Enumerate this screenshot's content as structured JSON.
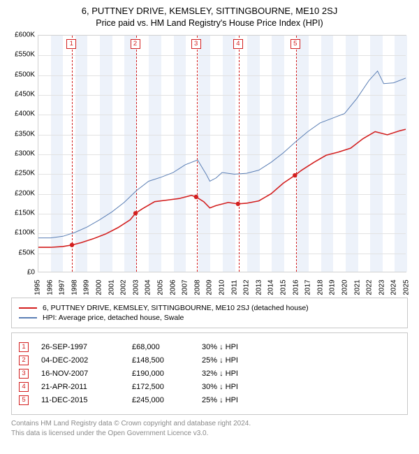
{
  "title": "6, PUTTNEY DRIVE, KEMSLEY, SITTINGBOURNE, ME10 2SJ",
  "subtitle": "Price paid vs. HM Land Registry's House Price Index (HPI)",
  "chart": {
    "type": "line",
    "background_color": "#ffffff",
    "grid_color": "#e2e2e2",
    "band_color": "#edf2fa",
    "x_years": [
      1995,
      1996,
      1997,
      1998,
      1999,
      2000,
      2001,
      2002,
      2003,
      2004,
      2005,
      2006,
      2007,
      2008,
      2009,
      2010,
      2011,
      2012,
      2013,
      2014,
      2015,
      2016,
      2017,
      2018,
      2019,
      2020,
      2021,
      2022,
      2023,
      2024,
      2025
    ],
    "ylim": [
      0,
      600
    ],
    "ytick_step": 50,
    "ytick_labels": [
      "£0",
      "£50K",
      "£100K",
      "£150K",
      "£200K",
      "£250K",
      "£300K",
      "£350K",
      "£400K",
      "£450K",
      "£500K",
      "£550K",
      "£600K"
    ],
    "label_fontsize": 10,
    "band_years": [
      1996,
      1998,
      2000,
      2002,
      2004,
      2006,
      2008,
      2010,
      2012,
      2014,
      2016,
      2018,
      2020,
      2022,
      2024
    ],
    "series": [
      {
        "name": "prop",
        "color": "#d31f1f",
        "width": 1.6,
        "points": [
          [
            1995.0,
            62
          ],
          [
            1996.0,
            62
          ],
          [
            1997.0,
            64
          ],
          [
            1997.74,
            68
          ],
          [
            1998.5,
            74
          ],
          [
            1999.5,
            84
          ],
          [
            2000.5,
            96
          ],
          [
            2001.5,
            112
          ],
          [
            2002.5,
            132
          ],
          [
            2002.93,
            148.5
          ],
          [
            2003.5,
            160
          ],
          [
            2004.5,
            178
          ],
          [
            2005.5,
            182
          ],
          [
            2006.5,
            186
          ],
          [
            2007.5,
            194
          ],
          [
            2007.88,
            190
          ],
          [
            2008.5,
            178
          ],
          [
            2009.0,
            162
          ],
          [
            2009.5,
            168
          ],
          [
            2010.5,
            176
          ],
          [
            2011.3,
            172.5
          ],
          [
            2012.0,
            174
          ],
          [
            2013.0,
            180
          ],
          [
            2014.0,
            198
          ],
          [
            2015.0,
            225
          ],
          [
            2015.95,
            245
          ],
          [
            2016.5,
            258
          ],
          [
            2017.5,
            278
          ],
          [
            2018.5,
            296
          ],
          [
            2019.5,
            304
          ],
          [
            2020.5,
            314
          ],
          [
            2021.5,
            338
          ],
          [
            2022.5,
            356
          ],
          [
            2023.5,
            348
          ],
          [
            2024.5,
            358
          ],
          [
            2025.0,
            362
          ]
        ]
      },
      {
        "name": "hpi",
        "color": "#5b7fb5",
        "width": 1.0,
        "points": [
          [
            1995.0,
            86
          ],
          [
            1996.0,
            86
          ],
          [
            1997.0,
            90
          ],
          [
            1998.0,
            100
          ],
          [
            1999.0,
            114
          ],
          [
            2000.0,
            132
          ],
          [
            2001.0,
            152
          ],
          [
            2002.0,
            176
          ],
          [
            2003.0,
            206
          ],
          [
            2004.0,
            230
          ],
          [
            2005.0,
            240
          ],
          [
            2006.0,
            252
          ],
          [
            2007.0,
            272
          ],
          [
            2008.0,
            284
          ],
          [
            2008.7,
            248
          ],
          [
            2009.0,
            230
          ],
          [
            2009.5,
            238
          ],
          [
            2010.0,
            252
          ],
          [
            2011.0,
            248
          ],
          [
            2012.0,
            250
          ],
          [
            2013.0,
            258
          ],
          [
            2014.0,
            278
          ],
          [
            2015.0,
            302
          ],
          [
            2016.0,
            330
          ],
          [
            2017.0,
            356
          ],
          [
            2018.0,
            378
          ],
          [
            2019.0,
            390
          ],
          [
            2020.0,
            402
          ],
          [
            2021.0,
            440
          ],
          [
            2022.0,
            486
          ],
          [
            2022.7,
            510
          ],
          [
            2023.2,
            478
          ],
          [
            2024.0,
            480
          ],
          [
            2025.0,
            492
          ]
        ]
      }
    ],
    "sale_markers": [
      {
        "n": "1",
        "year": 1997.74,
        "price": 68,
        "dash_color": "#d31f1f"
      },
      {
        "n": "2",
        "year": 2002.93,
        "price": 148.5,
        "dash_color": "#d31f1f"
      },
      {
        "n": "3",
        "year": 2007.88,
        "price": 190,
        "dash_color": "#d31f1f"
      },
      {
        "n": "4",
        "year": 2011.3,
        "price": 172.5,
        "dash_color": "#d31f1f"
      },
      {
        "n": "5",
        "year": 2015.95,
        "price": 245,
        "dash_color": "#d31f1f"
      }
    ]
  },
  "legend": {
    "prop": {
      "label": "6, PUTTNEY DRIVE, KEMSLEY, SITTINGBOURNE, ME10 2SJ (detached house)",
      "color": "#d31f1f"
    },
    "hpi": {
      "label": "HPI: Average price, detached house, Swale",
      "color": "#5b7fb5"
    }
  },
  "sales": [
    {
      "n": "1",
      "date": "26-SEP-1997",
      "price": "£68,000",
      "diff": "30% ↓ HPI"
    },
    {
      "n": "2",
      "date": "04-DEC-2002",
      "price": "£148,500",
      "diff": "25% ↓ HPI"
    },
    {
      "n": "3",
      "date": "16-NOV-2007",
      "price": "£190,000",
      "diff": "32% ↓ HPI"
    },
    {
      "n": "4",
      "date": "21-APR-2011",
      "price": "£172,500",
      "diff": "30% ↓ HPI"
    },
    {
      "n": "5",
      "date": "11-DEC-2015",
      "price": "£245,000",
      "diff": "25% ↓ HPI"
    }
  ],
  "footer": {
    "l1": "Contains HM Land Registry data © Crown copyright and database right 2024.",
    "l2": "This data is licensed under the Open Government Licence v3.0."
  }
}
